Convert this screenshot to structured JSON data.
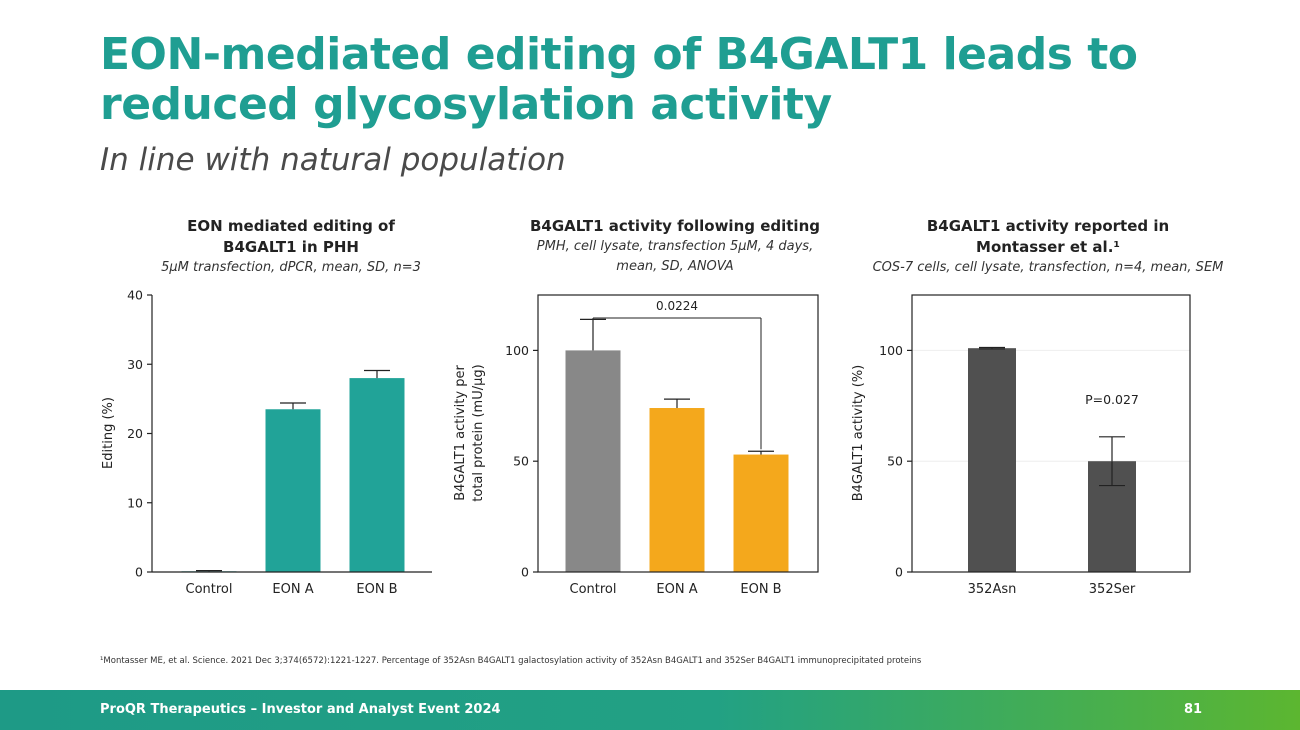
{
  "slide": {
    "title_line1": "EON-mediated editing of B4GALT1 leads to",
    "title_line2": "reduced glycosylation activity",
    "subtitle": "In line with natural population",
    "footnote": "¹Montasser ME, et al. Science. 2021 Dec 3;374(6572):1221-1227. Percentage of 352Asn B4GALT1 galactosylation activity of 352Asn B4GALT1 and 352Ser B4GALT1 immunoprecipitated proteins",
    "footer_text": "ProQR Therapeutics – Investor and Analyst Event 2024",
    "page_number": "81",
    "colors": {
      "title": "#1f9e92",
      "teal_bar": "#21a398",
      "orange_bar": "#f4a81c",
      "gray_bar": "#888888",
      "dark_bar": "#505050"
    }
  },
  "panels": [
    {
      "title_line1": "EON mediated editing of",
      "title_line2": "B4GALT1 in PHH",
      "subtitle_line1": "5µM transfection, dPCR, mean, SD, n=3",
      "subtitle_line2": ""
    },
    {
      "title_line1": "B4GALT1 activity following editing",
      "title_line2": "",
      "subtitle_line1": "PMH, cell lysate, transfection 5µM, 4 days,",
      "subtitle_line2": "mean, SD, ANOVA"
    },
    {
      "title_line1": "B4GALT1 activity reported in",
      "title_line2": "Montasser et al.¹",
      "subtitle_line1": "COS-7 cells, cell lysate, transfection, n=4, mean, SEM",
      "subtitle_line2": ""
    }
  ],
  "chart_data": [
    {
      "type": "bar",
      "title": "EON mediated editing of B4GALT1 in PHH",
      "categories": [
        "Control",
        "EON A",
        "EON B"
      ],
      "values": [
        0.1,
        23.5,
        28
      ],
      "errors": [
        0.1,
        0.9,
        1.1
      ],
      "ylabel": "Editing (%)",
      "ylim": [
        0,
        40
      ],
      "yticks": [
        0,
        10,
        20,
        30,
        40
      ],
      "colors": [
        "#21a398",
        "#21a398",
        "#21a398"
      ],
      "grid": false
    },
    {
      "type": "bar",
      "title": "B4GALT1 activity following editing",
      "categories": [
        "Control",
        "EON A",
        "EON B"
      ],
      "values": [
        100,
        74,
        53
      ],
      "errors": [
        14,
        4,
        1.5
      ],
      "ylabel": "B4GALT1 activity per total protein (mU/µg)",
      "ylim": [
        0,
        125
      ],
      "yticks": [
        0,
        50,
        100
      ],
      "colors": [
        "#888888",
        "#f4a81c",
        "#f4a81c"
      ],
      "annotation": {
        "text": "0.0224",
        "from": "Control",
        "to": "EON B"
      },
      "grid": false
    },
    {
      "type": "bar",
      "title": "B4GALT1 activity reported in Montasser et al.",
      "categories": [
        "352Asn",
        "352Ser"
      ],
      "values": [
        101,
        50
      ],
      "errors": [
        0.3,
        11
      ],
      "ylabel": "B4GALT1 activity (%)",
      "ylim": [
        0,
        125
      ],
      "yticks": [
        0,
        50,
        100
      ],
      "colors": [
        "#505050",
        "#505050"
      ],
      "annotation": {
        "text": "P=0.027"
      },
      "grid": false
    }
  ]
}
